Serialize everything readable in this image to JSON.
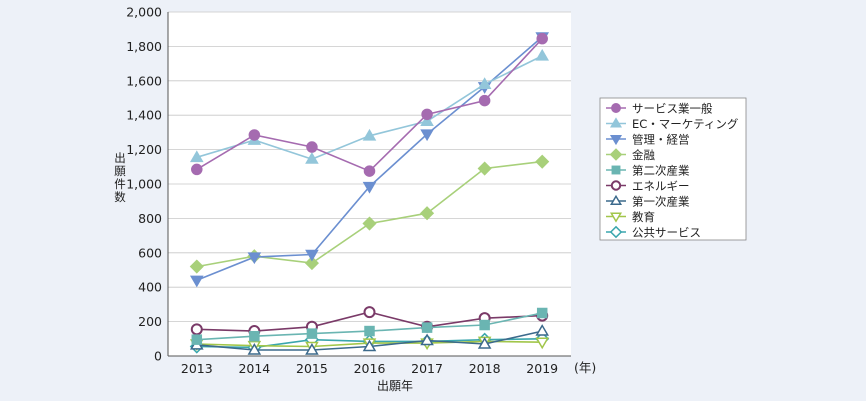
{
  "chart_data": {
    "type": "line",
    "title": "",
    "xlabel": "出願年",
    "ylabel": "出願件数",
    "x_unit": "(年)",
    "x": [
      2013,
      2014,
      2015,
      2016,
      2017,
      2018,
      2019
    ],
    "y_ticks": [
      "0",
      "200",
      "400",
      "600",
      "800",
      "1,000",
      "1,200",
      "1,400",
      "1,600",
      "1,800",
      "2,000"
    ],
    "ylim": [
      0,
      2000
    ],
    "grid": "horizontal",
    "legend_position": "right",
    "series": [
      {
        "name": "サービス業一般",
        "color": "#a56bb0",
        "marker": "circle-filled",
        "values": [
          1085,
          1285,
          1215,
          1075,
          1405,
          1485,
          1845
        ]
      },
      {
        "name": "EC・マーケティング",
        "color": "#93c6da",
        "marker": "triangle-up",
        "values": [
          1155,
          1255,
          1145,
          1280,
          1365,
          1580,
          1745
        ]
      },
      {
        "name": "管理・経営",
        "color": "#6b8fd0",
        "marker": "triangle-down",
        "values": [
          440,
          575,
          590,
          985,
          1290,
          1565,
          1855
        ]
      },
      {
        "name": "金融",
        "color": "#a8d07a",
        "marker": "diamond",
        "values": [
          520,
          580,
          540,
          770,
          830,
          1090,
          1130
        ]
      },
      {
        "name": "第二次産業",
        "color": "#6ab5b2",
        "marker": "square",
        "values": [
          95,
          115,
          130,
          145,
          165,
          180,
          250
        ]
      },
      {
        "name": "エネルギー",
        "color": "#7a3a68",
        "marker": "circle-open",
        "values": [
          155,
          145,
          170,
          255,
          170,
          220,
          235
        ]
      },
      {
        "name": "第一次産業",
        "color": "#3c6a8c",
        "marker": "triangle-open",
        "values": [
          65,
          35,
          35,
          55,
          90,
          70,
          145
        ]
      },
      {
        "name": "教育",
        "color": "#a2c64a",
        "marker": "triangle-down-open",
        "values": [
          70,
          60,
          55,
          75,
          75,
          85,
          80
        ]
      },
      {
        "name": "公共サービス",
        "color": "#3aa6ad",
        "marker": "diamond-open",
        "values": [
          55,
          50,
          95,
          85,
          85,
          95,
          100
        ]
      }
    ]
  }
}
